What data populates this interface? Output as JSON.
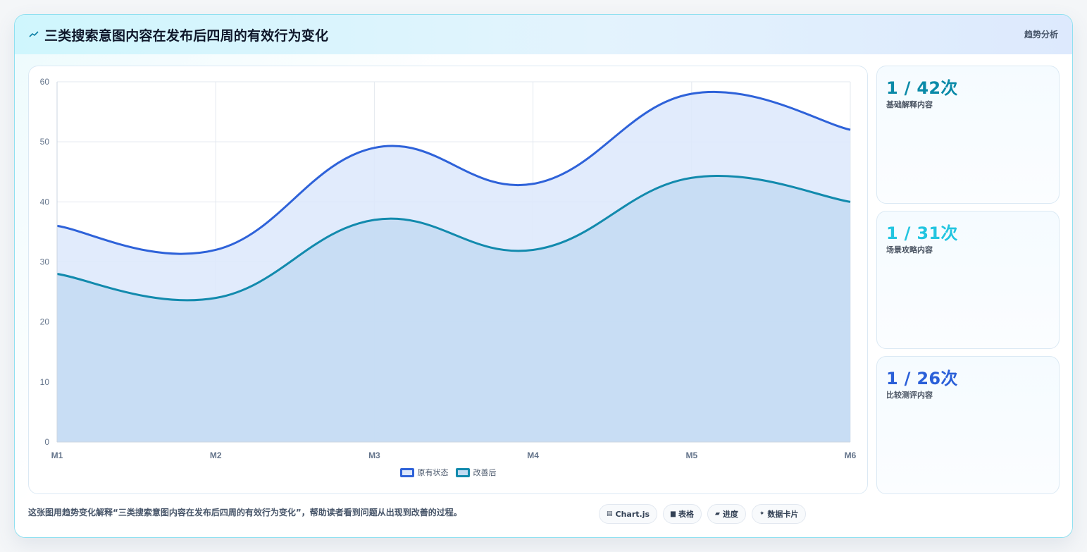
{
  "header": {
    "icon": "trend-line-icon",
    "title": "三类搜索意图内容在发布后四周的有效行为变化",
    "tag": "趋势分析"
  },
  "chart_data": {
    "type": "area",
    "categories": [
      "M1",
      "M2",
      "M3",
      "M4",
      "M5",
      "M6"
    ],
    "ylim": [
      0,
      60
    ],
    "yticks": [
      "0",
      "10",
      "20",
      "30",
      "40",
      "50",
      "60"
    ],
    "grid": true,
    "legend_position": "bottom",
    "series": [
      {
        "name": "原有状态",
        "values": [
          36,
          32,
          49,
          43,
          58,
          52
        ],
        "color": "#2e62d9",
        "fill": "#dce7fb"
      },
      {
        "name": "改善后",
        "values": [
          28,
          24,
          37,
          32,
          44,
          40
        ],
        "color": "#128aad",
        "fill": "#c3dbf2"
      }
    ]
  },
  "stats": [
    {
      "value": "1 / 42次",
      "label": "基础解释内容",
      "color": "#0b8aa8"
    },
    {
      "value": "1 / 31次",
      "label": "场景攻略内容",
      "color": "#22c5e0"
    },
    {
      "value": "1 / 26次",
      "label": "比较测评内容",
      "color": "#2a5fd8"
    }
  ],
  "caption": "这张图用趋势变化解释“三类搜索意图内容在发布后四周的有效行为变化”，帮助读者看到问题从出现到改善的过程。",
  "chips": [
    {
      "icon": "chart-icon",
      "glyph": "▤",
      "label": "Chart.js"
    },
    {
      "icon": "table-icon",
      "glyph": "▆",
      "label": "表格"
    },
    {
      "icon": "progress-icon",
      "glyph": "▰",
      "label": "进度"
    },
    {
      "icon": "sparkle-icon",
      "glyph": "✦",
      "label": "数据卡片"
    }
  ]
}
